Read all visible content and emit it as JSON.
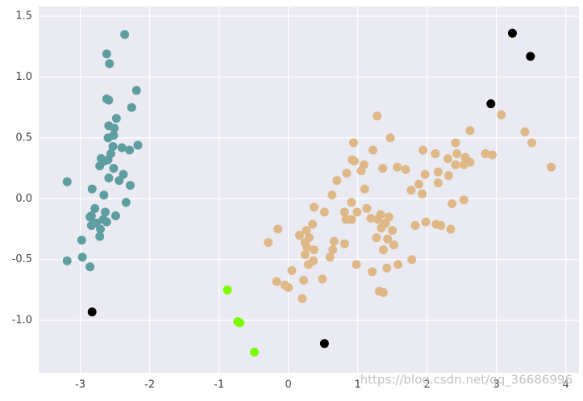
{
  "chart_data": {
    "type": "scatter",
    "annotation": "https://blog.csdn.net/qq_36686996",
    "xlim": [
      -3.6,
      4.19
    ],
    "ylim": [
      -1.43,
      1.58
    ],
    "xticks": [
      -3,
      -2,
      -1,
      0,
      1,
      2,
      3,
      4
    ],
    "yticks": [
      1.5,
      {
        "value": 1.0,
        "label": "1.0"
      },
      0.5,
      {
        "value": 0.0,
        "label": "0.0"
      },
      -0.5,
      {
        "value": -1.0,
        "label": "-1.0"
      }
    ],
    "grid": true,
    "series": [
      {
        "color": "#5f9ea0",
        "x": [
          -2.36,
          -2.62,
          -2.58,
          -2.62,
          -2.59,
          -2.19,
          -2.26,
          -2.48,
          -2.59,
          -2.51,
          -2.52,
          -2.6,
          -2.4,
          -2.53,
          -2.17,
          -2.29,
          -2.7,
          -2.6,
          -2.65,
          -2.56,
          -2.52,
          -2.72,
          -2.38,
          -2.59,
          -2.44,
          -2.28,
          -3.19,
          -2.83,
          -2.66,
          -2.34,
          -2.79,
          -2.84,
          -2.64,
          -2.49,
          -2.86,
          -2.67,
          -2.77,
          -2.84,
          -2.71,
          -2.62,
          -2.72,
          -2.98,
          -2.97,
          -3.19,
          -2.86
        ],
        "values": [
          1.35,
          1.19,
          1.11,
          0.82,
          0.81,
          0.89,
          0.75,
          0.66,
          0.6,
          0.58,
          0.52,
          0.5,
          0.42,
          0.43,
          0.44,
          0.4,
          0.33,
          0.32,
          0.31,
          0.37,
          0.25,
          0.27,
          0.2,
          0.17,
          0.15,
          0.11,
          0.14,
          0.08,
          0.03,
          -0.03,
          -0.08,
          -0.14,
          -0.11,
          -0.14,
          -0.15,
          -0.17,
          -0.2,
          -0.22,
          -0.25,
          -0.19,
          -0.31,
          -0.34,
          -0.48,
          -0.51,
          -0.56
        ]
      },
      {
        "color": "#deb887",
        "x": [
          1.28,
          2.62,
          3.07,
          3.41,
          3.51,
          3.79,
          1.47,
          0.94,
          1.22,
          1.94,
          2.12,
          2.41,
          2.43,
          2.3,
          2.55,
          2.84,
          2.94,
          0.92,
          0.95,
          1.09,
          0.84,
          0.7,
          1.05,
          1.36,
          1.57,
          1.69,
          1.97,
          2.16,
          2.41,
          2.53,
          2.62,
          2.31,
          1.88,
          1.77,
          1.93,
          2.16,
          1.1,
          0.63,
          0.91,
          0.81,
          0.99,
          1.13,
          0.37,
          0.52,
          2.53,
          2.36,
          1.33,
          1.45,
          1.29,
          1.19,
          0.83,
          0.91,
          1.4,
          1.83,
          1.98,
          2.13,
          2.2,
          2.34,
          0.35,
          0.26,
          -0.15,
          1.34,
          1.5,
          1.27,
          1.43,
          0.16,
          0.3,
          0.24,
          0.66,
          0.81,
          -0.29,
          0.64,
          0.37,
          0.27,
          0.24,
          1.52,
          1.37,
          0.6,
          0.36,
          1.78,
          0.98,
          0.29,
          1.58,
          1.42,
          0.05,
          1.21,
          0.22,
          -0.17,
          0.49,
          -0.05,
          0.0,
          1.31,
          1.37,
          0.2
        ],
        "values": [
          0.68,
          0.56,
          0.69,
          0.55,
          0.46,
          0.26,
          0.5,
          0.46,
          0.4,
          0.4,
          0.37,
          0.46,
          0.37,
          0.33,
          0.34,
          0.37,
          0.36,
          0.32,
          0.31,
          0.28,
          0.21,
          0.15,
          0.23,
          0.25,
          0.26,
          0.24,
          0.2,
          0.22,
          0.28,
          0.28,
          0.3,
          0.19,
          0.12,
          0.07,
          0.04,
          0.13,
          0.08,
          0.03,
          -0.03,
          -0.11,
          -0.11,
          -0.08,
          -0.07,
          -0.11,
          -0.01,
          -0.04,
          -0.13,
          -0.15,
          -0.17,
          -0.16,
          -0.17,
          -0.17,
          -0.2,
          -0.22,
          -0.19,
          -0.21,
          -0.22,
          -0.25,
          -0.21,
          -0.26,
          -0.25,
          -0.24,
          -0.26,
          -0.32,
          -0.33,
          -0.3,
          -0.32,
          -0.36,
          -0.35,
          -0.37,
          -0.36,
          -0.42,
          -0.42,
          -0.4,
          -0.46,
          -0.38,
          -0.42,
          -0.48,
          -0.51,
          -0.5,
          -0.54,
          -0.54,
          -0.54,
          -0.57,
          -0.59,
          -0.6,
          -0.67,
          -0.68,
          -0.66,
          -0.71,
          -0.73,
          -0.76,
          -0.77,
          -0.82
        ]
      },
      {
        "color": "#7cfc00",
        "x": [
          -0.88,
          -0.73,
          -0.7,
          -0.49
        ],
        "values": [
          -0.75,
          -1.01,
          -1.02,
          -1.26
        ]
      },
      {
        "color": "#000000",
        "x": [
          -2.83,
          0.52,
          2.92,
          3.23,
          3.49
        ],
        "values": [
          -0.93,
          -1.19,
          0.78,
          1.36,
          1.17
        ]
      }
    ]
  }
}
